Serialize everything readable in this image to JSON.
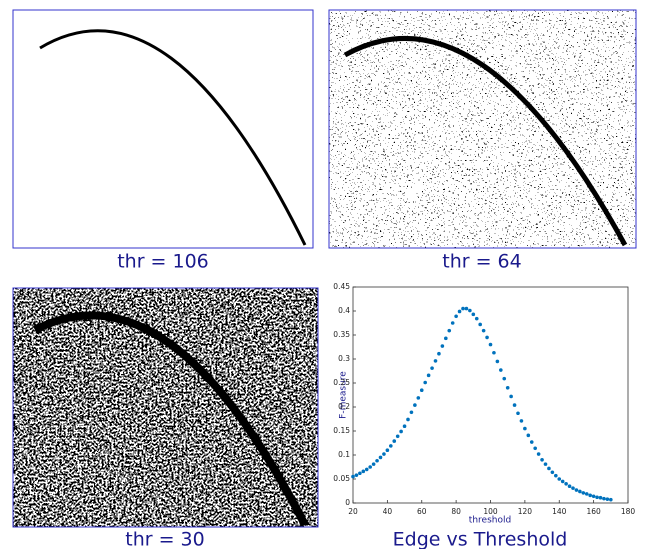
{
  "images": [
    {
      "caption": "thr = 106"
    },
    {
      "caption": "thr = 64"
    },
    {
      "caption": "thr = 30"
    }
  ],
  "chart_data": {
    "type": "scatter",
    "title": "Edge vs Threshold",
    "x_label": "threshold",
    "y_label": "F-measure",
    "color": "#0072bd",
    "x": [
      20,
      22,
      24,
      26,
      28,
      30,
      32,
      34,
      36,
      38,
      40,
      42,
      44,
      46,
      48,
      50,
      52,
      54,
      56,
      58,
      60,
      62,
      64,
      66,
      68,
      70,
      72,
      74,
      76,
      78,
      80,
      82,
      84,
      86,
      88,
      90,
      92,
      94,
      96,
      98,
      100,
      102,
      104,
      106,
      108,
      110,
      112,
      114,
      116,
      118,
      120,
      122,
      124,
      126,
      128,
      130,
      132,
      134,
      136,
      138,
      140,
      142,
      144,
      146,
      148,
      150,
      152,
      154,
      156,
      158,
      160,
      162,
      164,
      166,
      168,
      170
    ],
    "values": [
      0.055,
      0.058,
      0.062,
      0.066,
      0.07,
      0.075,
      0.081,
      0.088,
      0.095,
      0.102,
      0.11,
      0.119,
      0.129,
      0.139,
      0.149,
      0.16,
      0.174,
      0.189,
      0.204,
      0.219,
      0.235,
      0.251,
      0.266,
      0.281,
      0.296,
      0.311,
      0.327,
      0.343,
      0.359,
      0.375,
      0.389,
      0.399,
      0.405,
      0.405,
      0.401,
      0.393,
      0.384,
      0.372,
      0.359,
      0.345,
      0.33,
      0.313,
      0.295,
      0.277,
      0.259,
      0.24,
      0.222,
      0.204,
      0.187,
      0.171,
      0.155,
      0.141,
      0.127,
      0.114,
      0.102,
      0.09,
      0.081,
      0.072,
      0.064,
      0.057,
      0.05,
      0.045,
      0.04,
      0.035,
      0.031,
      0.027,
      0.024,
      0.021,
      0.019,
      0.016,
      0.014,
      0.012,
      0.011,
      0.009,
      0.008,
      0.007
    ],
    "xlim": [
      20,
      180
    ],
    "xticks": [
      20,
      40,
      60,
      80,
      100,
      120,
      140,
      160,
      180
    ],
    "ylim": [
      0,
      0.45
    ],
    "yticks": [
      0,
      0.05,
      0.1,
      0.15,
      0.2,
      0.25,
      0.3,
      0.35,
      0.4,
      0.45
    ]
  }
}
